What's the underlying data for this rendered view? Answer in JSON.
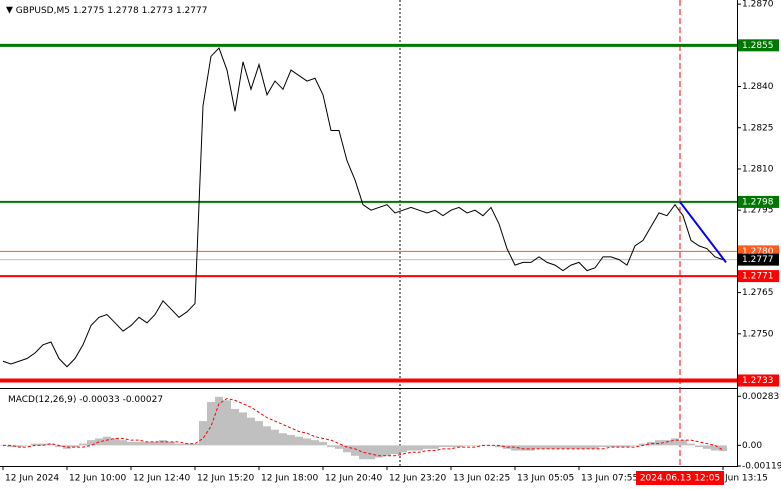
{
  "chart_data": [
    {
      "type": "line",
      "title": "GBPUSD,M5",
      "ohlc": [
        1.2775,
        1.2778,
        1.2773,
        1.2777
      ],
      "categories": [
        "12 Jun 2024",
        null,
        null,
        null,
        null,
        null,
        null,
        null,
        "12 Jun 10:00",
        null,
        null,
        null,
        null,
        null,
        null,
        null,
        "12 Jun 12:40",
        null,
        null,
        null,
        null,
        null,
        null,
        null,
        "12 Jun 15:20",
        null,
        null,
        null,
        null,
        null,
        null,
        null,
        "12 Jun 18:00",
        null,
        null,
        null,
        null,
        null,
        null,
        null,
        "12 Jun 20:40",
        null,
        null,
        null,
        null,
        null,
        null,
        null,
        "12 Jun 23:20",
        null,
        null,
        null,
        null,
        null,
        null,
        null,
        "13 Jun 02:25",
        null,
        null,
        null,
        null,
        null,
        null,
        null,
        "13 Jun 05:05",
        null,
        null,
        null,
        null,
        null,
        null,
        null,
        "13 Jun 07:55",
        null,
        null,
        null,
        null,
        null,
        null,
        null,
        null,
        null,
        null,
        null,
        null,
        null,
        null,
        null,
        null,
        null,
        "Jun 13:15"
      ],
      "series": [
        {
          "color": "#000000",
          "values": [
            1.274,
            1.2739,
            1.274,
            1.2741,
            1.2743,
            1.2746,
            1.2747,
            1.2741,
            1.2738,
            1.2741,
            1.2746,
            1.2753,
            1.2756,
            1.2757,
            1.2754,
            1.2751,
            1.2753,
            1.2756,
            1.2754,
            1.2757,
            1.2762,
            1.2759,
            1.2756,
            1.2758,
            1.2761,
            1.2833,
            1.2851,
            1.2854,
            1.2846,
            1.2831,
            1.2849,
            1.2839,
            1.2848,
            1.2837,
            1.2842,
            1.2839,
            1.2846,
            1.2844,
            1.2842,
            1.2843,
            1.2837,
            1.2824,
            1.2824,
            1.2813,
            1.2806,
            1.2797,
            1.2795,
            1.2796,
            1.2797,
            1.2794,
            1.2795,
            1.2796,
            1.2795,
            1.2794,
            1.2795,
            1.2793,
            1.2795,
            1.2796,
            1.2794,
            1.2795,
            1.2793,
            1.2796,
            1.279,
            1.2781,
            1.2775,
            1.2776,
            1.2776,
            1.2778,
            1.2776,
            1.2775,
            1.2773,
            1.2775,
            1.2776,
            1.2773,
            1.2774,
            1.2778,
            1.2778,
            1.2777,
            1.2775,
            1.2782,
            1.2784,
            1.2789,
            1.2794,
            1.2793,
            1.2797,
            1.2793,
            1.2784,
            1.2782,
            1.2781,
            1.2778,
            1.2777
          ]
        }
      ],
      "ylim": [
        1.2731,
        1.28715
      ],
      "yticks": [
        {
          "value": 1.287,
          "label": "1.2870"
        },
        {
          "value": 1.284,
          "label": "1.2840"
        },
        1.2825,
        {
          "value": 1.281,
          "label": "1.2810"
        },
        1.2795,
        1.2765,
        {
          "value": 1.275,
          "label": "1.2750"
        }
      ],
      "levels": [
        {
          "value": 1.2855,
          "color": "#007700"
        },
        {
          "value": 1.2798,
          "color": "#007700"
        },
        {
          "value": 1.278,
          "label": "1.2780",
          "color": "#ff5a1e"
        },
        {
          "value": 1.2771,
          "color": "#ff0000"
        },
        {
          "value": 1.2733,
          "color": "#ff0000"
        }
      ],
      "trend_line": {
        "color": "#0000ff",
        "values": [
          1.2798,
          1.2776
        ]
      },
      "cursor_label": "2024.06.13 12:05",
      "cursor_color": "#ff0000"
    },
    {
      "type": "macd",
      "title": "MACD(12,26,9)",
      "series": [
        {
          "color": "#c0c0c0",
          "values": [
            0,
            -0.0001,
            -0.0001,
            0,
            0.0001,
            0.0001,
            0.0001,
            -0.0001,
            -0.0002,
            -0.0001,
            0.0001,
            0.0003,
            0.0004,
            0.0005,
            0.0004,
            0.0003,
            0.0002,
            0.0002,
            0.0002,
            0.0002,
            0.0003,
            0.0002,
            0.0001,
            0.0001,
            0.0001,
            0.0014,
            0.0025,
            0.0028,
            0.0026,
            0.0021,
            0.0019,
            0.0016,
            0.0014,
            0.0011,
            0.0009,
            0.0007,
            0.0006,
            0.0005,
            0.0004,
            0.0003,
            0.0002,
            -0.0001,
            -0.0002,
            -0.0004,
            -0.0006,
            -0.0008,
            -0.0008,
            -0.0007,
            -0.0006,
            -0.0005,
            -0.0004,
            -0.0003,
            -0.0003,
            -0.0002,
            -0.0002,
            -0.0001,
            -0.0001,
            -0.0001,
            0,
            0,
            0,
            0,
            -0.0001,
            -0.0002,
            -0.0003,
            -0.0003,
            -0.0003,
            -0.0002,
            -0.0002,
            -0.0002,
            -0.0002,
            -0.0002,
            -0.0002,
            -0.0002,
            -0.0002,
            -0.0001,
            -0.0001,
            -0.0001,
            -0.0001,
            0,
            0.0001,
            0.0002,
            0.0003,
            0.0003,
            0.0004,
            0.0003,
            0.0001,
            -0.0001,
            -0.0002,
            -0.0003,
            -0.00033
          ]
        },
        {
          "color": "#ff0000",
          "values": [
            0,
            0,
            -0.0001,
            -0.0001,
            0,
            0,
            0.0001,
            0,
            -0.0001,
            -0.0001,
            -0.0001,
            0,
            0.0002,
            0.0003,
            0.0004,
            0.0004,
            0.0003,
            0.0003,
            0.0002,
            0.0002,
            0.0002,
            0.0002,
            0.0002,
            0.0001,
            0.0001,
            0.0004,
            0.0011,
            0.0024,
            0.0027,
            0.0026,
            0.0024,
            0.0022,
            0.0019,
            0.0016,
            0.0014,
            0.0012,
            0.001,
            0.0008,
            0.0007,
            0.0005,
            0.0004,
            0.0003,
            0.0001,
            -0.0001,
            -0.0002,
            -0.0004,
            -0.0005,
            -0.0006,
            -0.0006,
            -0.0006,
            -0.0005,
            -0.0004,
            -0.0004,
            -0.0003,
            -0.0003,
            -0.0002,
            -0.0002,
            -0.0001,
            -0.0001,
            -0.0001,
            0,
            0,
            0,
            -0.0001,
            -0.0001,
            -0.0002,
            -0.0002,
            -0.0002,
            -0.0002,
            -0.0002,
            -0.0002,
            -0.0002,
            -0.0002,
            -0.0002,
            -0.0002,
            -0.0002,
            -0.0001,
            -0.0001,
            -0.0001,
            -0.0001,
            0,
            0.0001,
            0.0001,
            0.0002,
            0.0003,
            0.0003,
            0.0003,
            0.0002,
            0.0001,
            0,
            -0.00027
          ]
        }
      ],
      "ylim": [
        -0.00119,
        0.00325
      ],
      "yticks": [
        0.00283,
        {
          "value": 0,
          "label": "0.00"
        },
        -0.00119
      ]
    }
  ]
}
